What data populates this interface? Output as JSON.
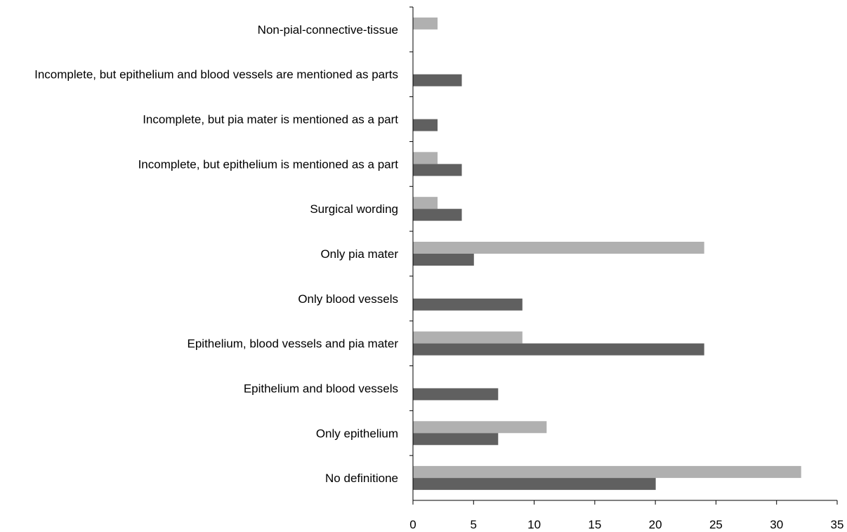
{
  "chart_data": {
    "type": "bar",
    "orientation": "horizontal",
    "categories": [
      "No definitione",
      "Only epithelium",
      "Epithelium and blood vessels",
      "Epithelium, blood vessels and pia mater",
      "Only blood vessels",
      "Only pia mater",
      "Surgical wording",
      "Incomplete, but epithelium is mentioned as a part",
      "Incomplete, but pia mater is mentioned as a part",
      "Incomplete, but epithelium and blood vessels are mentioned as parts",
      "Non-pial-connective-tissue"
    ],
    "series": [
      {
        "color": "#b0b0b0",
        "values": [
          32,
          11,
          0,
          9,
          0,
          24,
          2,
          2,
          0,
          0,
          2
        ]
      },
      {
        "color": "#606060",
        "values": [
          20,
          7,
          7,
          24,
          9,
          5,
          4,
          4,
          2,
          4,
          0
        ]
      }
    ],
    "xlim": [
      0,
      35
    ],
    "xticks": [
      0,
      5,
      10,
      15,
      20,
      25,
      30,
      35
    ],
    "title": "",
    "xlabel": "",
    "ylabel": "",
    "grid": false,
    "legend": false
  }
}
